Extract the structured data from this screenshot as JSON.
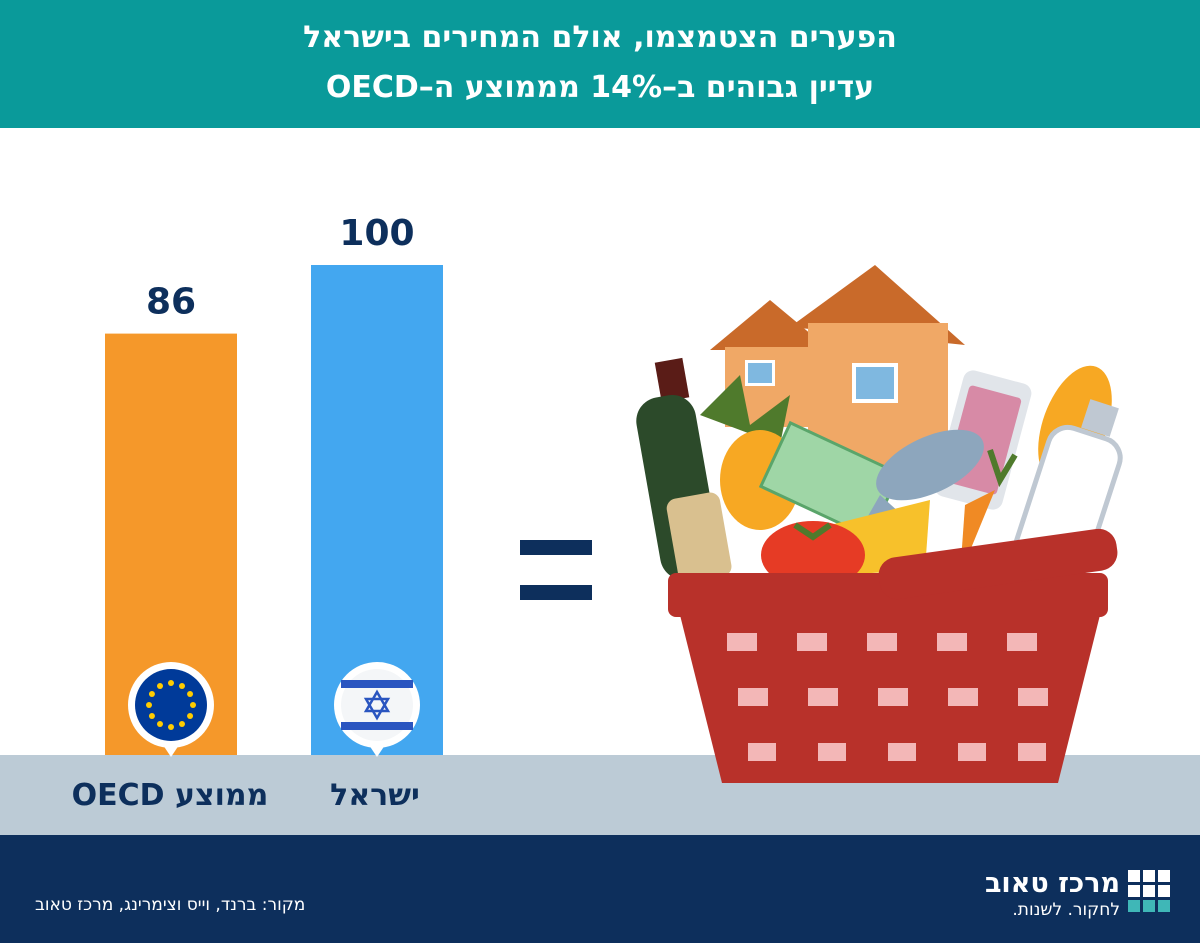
{
  "header": {
    "title_line1": "הפערים הצטמצמו, אולם המחירים בישראל",
    "title_line2": "עדיין גבוהים ב–14% מממוצע ה–OECD"
  },
  "chart_data": {
    "type": "bar",
    "categories": [
      "ממוצע OECD",
      "ישראל"
    ],
    "values": [
      86,
      100
    ],
    "value_labels": [
      "86",
      "100"
    ],
    "colors": [
      "#f5982a",
      "#43a7f0"
    ],
    "category_icons": [
      "eu-flag-icon",
      "israel-flag-icon"
    ],
    "ylim": [
      0,
      100
    ],
    "grid": false
  },
  "equals_symbol": "equals-icon",
  "illustration": "shopping-basket-illustration",
  "footer": {
    "source": "מקור: ברנד, וייס וצימרינג, מרכז טאוב",
    "logo_name": "מרכז טאוב",
    "logo_tagline": "לחקור. לשנות.",
    "logo_icon": "taub-grid-logo-icon"
  },
  "colors": {
    "title_band": "#0a9a9a",
    "ground": "#bccbd6",
    "footer": "#0d2f5c",
    "text_dark": "#0d2f5c"
  }
}
